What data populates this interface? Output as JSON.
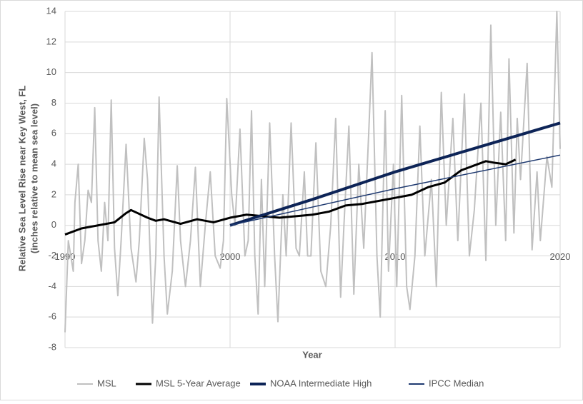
{
  "chart_data": {
    "type": "line",
    "x_label": "Year",
    "y_label": [
      "Relative Sea Level Rise near Key West, FL",
      "(inches relative to mean sea level)"
    ],
    "xlim": [
      1990,
      2020
    ],
    "xticks": [
      1990,
      2000,
      2010,
      2020
    ],
    "ylim": [
      -8,
      14
    ],
    "yticks": [
      -8,
      -6,
      -4,
      -2,
      0,
      2,
      4,
      6,
      8,
      10,
      12,
      14
    ],
    "grid": true,
    "legend": "bottom",
    "series": [
      {
        "name": "MSL",
        "color": "#c0c0c0",
        "width": 2,
        "x": [
          1990.0,
          1990.2,
          1990.5,
          1990.6,
          1990.8,
          1991.0,
          1991.2,
          1991.4,
          1991.6,
          1991.8,
          1992.0,
          1992.2,
          1992.4,
          1992.6,
          1992.8,
          1993.0,
          1993.2,
          1993.4,
          1993.7,
          1994.0,
          1994.3,
          1994.5,
          1994.8,
          1995.0,
          1995.3,
          1995.5,
          1995.7,
          1996.0,
          1996.2,
          1996.5,
          1996.8,
          1997.0,
          1997.3,
          1997.6,
          1997.9,
          1998.2,
          1998.5,
          1998.8,
          1999.1,
          1999.4,
          1999.6,
          1999.8,
          2000.1,
          2000.3,
          2000.6,
          2000.9,
          2001.1,
          2001.3,
          2001.5,
          2001.7,
          2001.9,
          2002.1,
          2002.4,
          2002.7,
          2002.9,
          2003.2,
          2003.4,
          2003.7,
          2004.0,
          2004.2,
          2004.5,
          2004.7,
          2004.9,
          2005.2,
          2005.5,
          2005.8,
          2006.1,
          2006.4,
          2006.7,
          2006.9,
          2007.2,
          2007.5,
          2007.8,
          2008.1,
          2008.4,
          2008.6,
          2008.9,
          2009.1,
          2009.4,
          2009.6,
          2009.9,
          2010.1,
          2010.4,
          2010.7,
          2010.9,
          2011.2,
          2011.5,
          2011.8,
          2012.2,
          2012.5,
          2012.8,
          2013.1,
          2013.5,
          2013.8,
          2014.2,
          2014.5,
          2014.8,
          2015.2,
          2015.5,
          2015.8,
          2016.1,
          2016.4,
          2016.7,
          2016.9,
          2017.2,
          2017.4,
          2017.6,
          2018.0,
          2018.3,
          2018.6,
          2018.8,
          2019.2,
          2019.5,
          2019.8,
          2020.0
        ],
        "values": [
          -7,
          -1,
          -3,
          1.5,
          4,
          -2.5,
          -1,
          2.3,
          1.5,
          7.7,
          -1,
          -3,
          1.5,
          -1,
          8.2,
          -1.5,
          -4.6,
          -1,
          5.3,
          -1.5,
          -3.7,
          -1,
          5.7,
          3,
          -6.4,
          -2,
          8.4,
          -2,
          -5.8,
          -3,
          3.9,
          -1,
          -4,
          -1,
          3.8,
          -4,
          0,
          3.5,
          -2,
          -2.8,
          -1,
          8.3,
          2,
          0,
          6.3,
          -2,
          -1,
          7.5,
          -2,
          -5.8,
          3,
          -4,
          6.7,
          -2,
          -6.3,
          2,
          -2,
          6.7,
          -1.5,
          -2,
          3.5,
          -2,
          -2,
          5.4,
          -3,
          -4,
          0,
          7,
          -4.7,
          0,
          6.5,
          -4.5,
          4,
          -1.5,
          6,
          11.3,
          -2,
          -6,
          7.5,
          -3,
          4,
          -4,
          8.5,
          -4,
          -5.5,
          -2,
          6.5,
          -2,
          3,
          -4,
          8.7,
          0,
          7,
          -1,
          8.6,
          -2,
          1,
          8,
          -2.3,
          13.1,
          0,
          7.4,
          -1,
          10.9,
          -0.5,
          7,
          3,
          10.6,
          -1.6,
          3.5,
          -1,
          4.5,
          2.5,
          14,
          5
        ]
      },
      {
        "name": "MSL 5-Year Average",
        "color": "#000000",
        "width": 3,
        "x": [
          1990,
          1991,
          1992,
          1993,
          1993.7,
          1994,
          1995,
          1995.5,
          1996,
          1997,
          1998,
          1999,
          2000,
          2001,
          2002,
          2003,
          2004,
          2005,
          2006,
          2007,
          2008,
          2009,
          2010,
          2011,
          2012,
          2013,
          2014,
          2015,
          2015.5,
          2016,
          2016.7,
          2017.3
        ],
        "values": [
          -0.6,
          -0.2,
          0,
          0.2,
          0.8,
          1,
          0.5,
          0.3,
          0.4,
          0.1,
          0.4,
          0.2,
          0.5,
          0.7,
          0.6,
          0.5,
          0.6,
          0.7,
          0.9,
          1.3,
          1.4,
          1.6,
          1.8,
          2,
          2.5,
          2.8,
          3.6,
          4,
          4.2,
          4.1,
          4,
          4.3
        ]
      },
      {
        "name": "NOAA Intermediate High",
        "color": "#0d2457",
        "width": 4,
        "x": [
          2000,
          2005,
          2010,
          2015,
          2020
        ],
        "values": [
          0,
          1.7,
          3.5,
          5.1,
          6.7
        ]
      },
      {
        "name": "IPCC Median",
        "color": "#1f3a70",
        "width": 1.5,
        "x": [
          2000,
          2010,
          2020
        ],
        "values": [
          0,
          2.4,
          4.6
        ]
      }
    ]
  }
}
